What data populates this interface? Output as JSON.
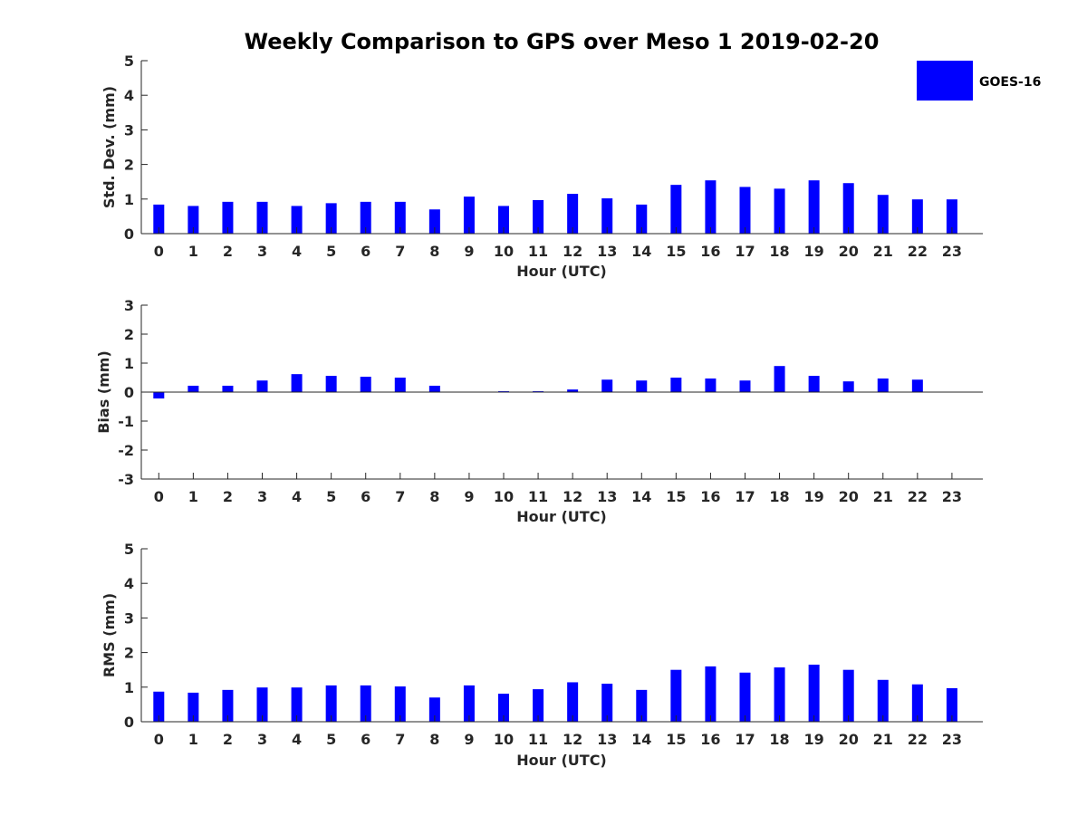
{
  "chart_title": "Weekly Comparison to GPS over Meso 1 2019-02-20",
  "legend": {
    "label": "GOES-16",
    "color": "#0000ff"
  },
  "chart_data": [
    {
      "type": "bar",
      "id": "std",
      "title": "Weekly Comparison to GPS over Meso 1 2019-02-20",
      "xlabel": "Hour (UTC)",
      "ylabel": "Std. Dev. (mm)",
      "ylim": [
        0,
        5
      ],
      "yticks": [
        "0",
        "1",
        "2",
        "3",
        "4",
        "5"
      ],
      "categories": [
        "0",
        "1",
        "2",
        "3",
        "4",
        "5",
        "6",
        "7",
        "8",
        "9",
        "10",
        "11",
        "12",
        "13",
        "14",
        "15",
        "16",
        "17",
        "18",
        "19",
        "20",
        "21",
        "22",
        "23"
      ],
      "series": [
        {
          "name": "GOES-16",
          "color": "#0000ff",
          "values": [
            0.84,
            0.8,
            0.92,
            0.92,
            0.8,
            0.88,
            0.92,
            0.92,
            0.7,
            1.07,
            0.8,
            0.97,
            1.15,
            1.02,
            0.84,
            1.41,
            1.54,
            1.35,
            1.3,
            1.54,
            1.46,
            1.12,
            0.99,
            0.99
          ]
        }
      ]
    },
    {
      "type": "bar",
      "id": "bias",
      "xlabel": "Hour (UTC)",
      "ylabel": "Bias (mm)",
      "ylim": [
        -3,
        3
      ],
      "yticks": [
        "-3",
        "-2",
        "-1",
        "0",
        "1",
        "2",
        "3"
      ],
      "categories": [
        "0",
        "1",
        "2",
        "3",
        "4",
        "5",
        "6",
        "7",
        "8",
        "9",
        "10",
        "11",
        "12",
        "13",
        "14",
        "15",
        "16",
        "17",
        "18",
        "19",
        "20",
        "21",
        "22",
        "23"
      ],
      "series": [
        {
          "name": "GOES-16",
          "color": "#0000ff",
          "values": [
            -0.22,
            0.22,
            0.22,
            0.4,
            0.62,
            0.56,
            0.53,
            0.5,
            0.22,
            0.0,
            0.03,
            0.03,
            0.09,
            0.43,
            0.4,
            0.5,
            0.47,
            0.4,
            0.9,
            0.56,
            0.37,
            0.47,
            0.43,
            0.0
          ]
        }
      ]
    },
    {
      "type": "bar",
      "id": "rms",
      "xlabel": "Hour (UTC)",
      "ylabel": "RMS (mm)",
      "ylim": [
        0,
        5
      ],
      "yticks": [
        "0",
        "1",
        "2",
        "3",
        "4",
        "5"
      ],
      "categories": [
        "0",
        "1",
        "2",
        "3",
        "4",
        "5",
        "6",
        "7",
        "8",
        "9",
        "10",
        "11",
        "12",
        "13",
        "14",
        "15",
        "16",
        "17",
        "18",
        "19",
        "20",
        "21",
        "22",
        "23"
      ],
      "series": [
        {
          "name": "GOES-16",
          "color": "#0000ff",
          "values": [
            0.87,
            0.84,
            0.92,
            0.99,
            0.99,
            1.05,
            1.05,
            1.02,
            0.7,
            1.05,
            0.81,
            0.94,
            1.14,
            1.1,
            0.92,
            1.5,
            1.6,
            1.42,
            1.57,
            1.65,
            1.5,
            1.21,
            1.08,
            0.97
          ]
        }
      ]
    }
  ]
}
